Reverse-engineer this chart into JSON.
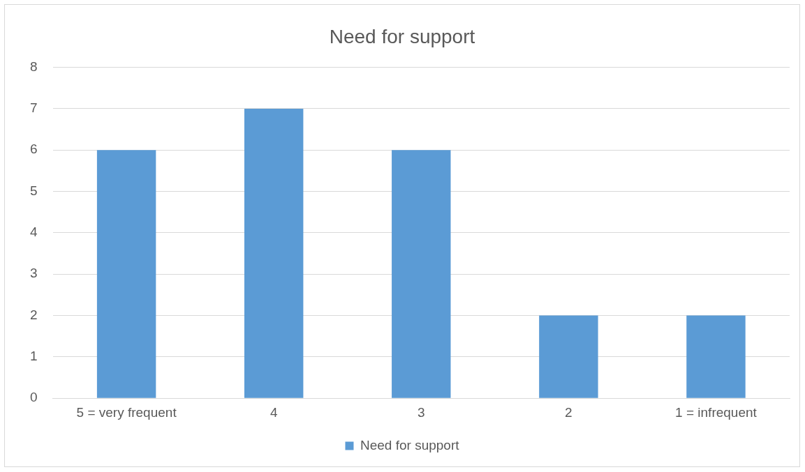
{
  "chart_data": {
    "type": "bar",
    "title": "Need for support",
    "categories": [
      "5 = very frequent",
      "4",
      "3",
      "2",
      "1 = infrequent"
    ],
    "series": [
      {
        "name": "Need for support",
        "color": "#5b9bd5",
        "values": [
          6,
          7,
          6,
          2,
          2
        ]
      }
    ],
    "ylim": [
      0,
      8
    ],
    "yticks": [
      0,
      1,
      2,
      3,
      4,
      5,
      6,
      7,
      8
    ],
    "grid": "y",
    "legend": "bottom"
  }
}
